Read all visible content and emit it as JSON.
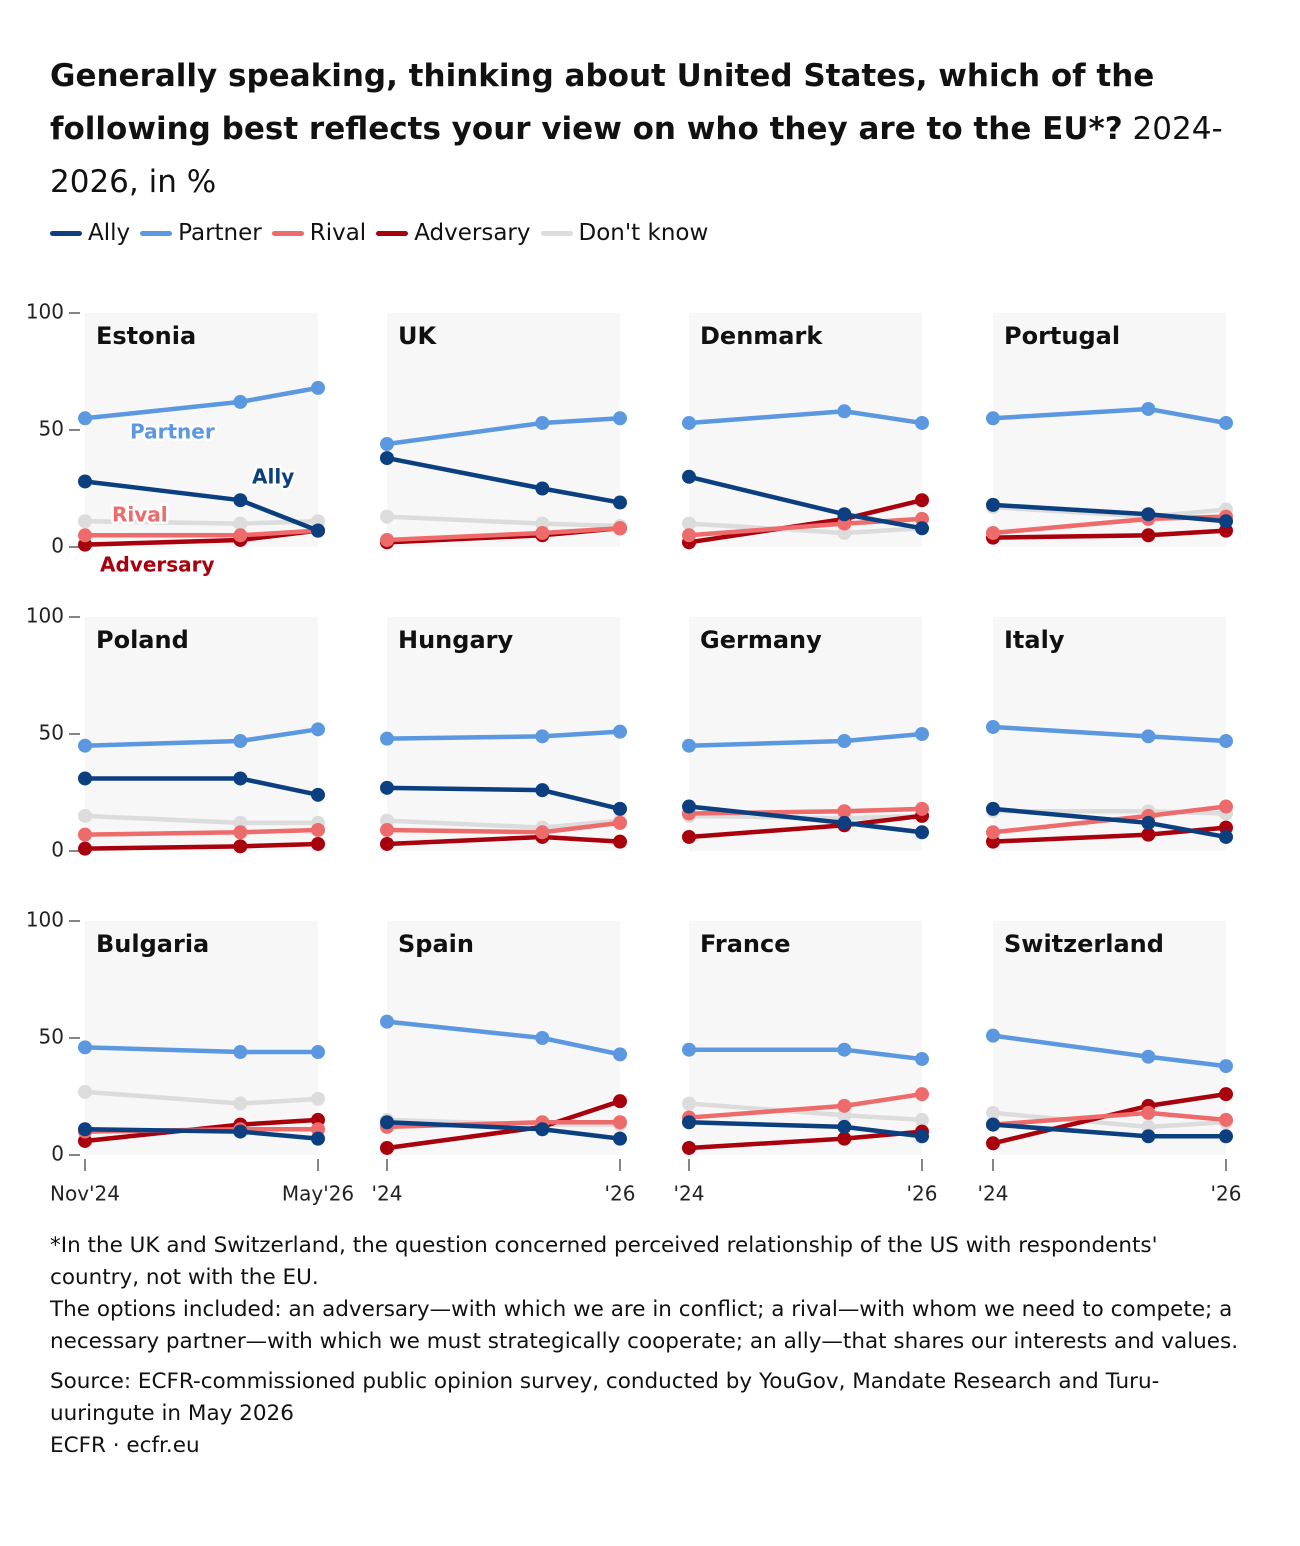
{
  "title": "Generally speaking, thinking about United States, which of the following best reflects your view on who they are to the EU*?",
  "subtitle": "2024-2026, in %",
  "notes": [
    "*In the UK and Switzerland, the question concerned perceived relationship of the US with respondents' country, not with the EU.",
    "The options included: an adversary—with which we are in conflict; a rival—with whom we need to compete; a necessary partner—with which we must strategically cooperate; an ally—that shares our interests and values."
  ],
  "source": "Source: ECFR-commissioned public opinion survey, conducted by YouGov, Mandate Research and Turu-uuringute in May 2026",
  "credit": "ECFR · ecfr.eu",
  "chart_data": [
    {
      "type": "line",
      "title": "Estonia",
      "x": [
        2024.875,
        2025.875,
        2026.375
      ],
      "xlim": [
        2024.875,
        2026.375
      ],
      "ylim": [
        0,
        100
      ],
      "yticks": [
        0,
        50,
        100
      ],
      "annotations": [
        "Partner",
        "Ally",
        "Rival",
        "Adversary"
      ],
      "series": [
        {
          "name": "Ally",
          "color": "#0b3f80",
          "values": [
            28,
            20,
            7
          ]
        },
        {
          "name": "Partner",
          "color": "#5b98e0",
          "values": [
            55,
            62,
            68
          ]
        },
        {
          "name": "Rival",
          "color": "#ee6b6b",
          "values": [
            5,
            5,
            7
          ]
        },
        {
          "name": "Adversary",
          "color": "#a8000c",
          "values": [
            1,
            3,
            7
          ]
        },
        {
          "name": "Don't know",
          "color": "#dcdcdc",
          "values": [
            11,
            10,
            11
          ]
        }
      ]
    },
    {
      "type": "line",
      "title": "UK",
      "x": [
        2024.875,
        2025.875,
        2026.375
      ],
      "xlim": [
        2024.875,
        2026.375
      ],
      "ylim": [
        0,
        100
      ],
      "series": [
        {
          "name": "Ally",
          "color": "#0b3f80",
          "values": [
            38,
            25,
            19
          ]
        },
        {
          "name": "Partner",
          "color": "#5b98e0",
          "values": [
            44,
            53,
            55
          ]
        },
        {
          "name": "Rival",
          "color": "#ee6b6b",
          "values": [
            3,
            6,
            8
          ]
        },
        {
          "name": "Adversary",
          "color": "#a8000c",
          "values": [
            2,
            5,
            8
          ]
        },
        {
          "name": "Don't know",
          "color": "#dcdcdc",
          "values": [
            13,
            10,
            9
          ]
        }
      ]
    },
    {
      "type": "line",
      "title": "Denmark",
      "x": [
        2024.875,
        2025.875,
        2026.375
      ],
      "xlim": [
        2024.875,
        2026.375
      ],
      "ylim": [
        0,
        100
      ],
      "series": [
        {
          "name": "Ally",
          "color": "#0b3f80",
          "values": [
            30,
            14,
            8
          ]
        },
        {
          "name": "Partner",
          "color": "#5b98e0",
          "values": [
            53,
            58,
            53
          ]
        },
        {
          "name": "Rival",
          "color": "#ee6b6b",
          "values": [
            5,
            10,
            12
          ]
        },
        {
          "name": "Adversary",
          "color": "#a8000c",
          "values": [
            2,
            12,
            20
          ]
        },
        {
          "name": "Don't know",
          "color": "#dcdcdc",
          "values": [
            10,
            6,
            8
          ]
        }
      ]
    },
    {
      "type": "line",
      "title": "Portugal",
      "x": [
        2024.875,
        2025.875,
        2026.375
      ],
      "xlim": [
        2024.875,
        2026.375
      ],
      "ylim": [
        0,
        100
      ],
      "series": [
        {
          "name": "Ally",
          "color": "#0b3f80",
          "values": [
            18,
            14,
            11
          ]
        },
        {
          "name": "Partner",
          "color": "#5b98e0",
          "values": [
            55,
            59,
            53
          ]
        },
        {
          "name": "Rival",
          "color": "#ee6b6b",
          "values": [
            6,
            12,
            13
          ]
        },
        {
          "name": "Adversary",
          "color": "#a8000c",
          "values": [
            4,
            5,
            7
          ]
        },
        {
          "name": "Don't know",
          "color": "#dcdcdc",
          "values": [
            17,
            13,
            16
          ]
        }
      ]
    },
    {
      "type": "line",
      "title": "Poland",
      "x": [
        2024.875,
        2025.875,
        2026.375
      ],
      "xlim": [
        2024.875,
        2026.375
      ],
      "ylim": [
        0,
        100
      ],
      "yticks": [
        0,
        50,
        100
      ],
      "series": [
        {
          "name": "Ally",
          "color": "#0b3f80",
          "values": [
            31,
            31,
            24
          ]
        },
        {
          "name": "Partner",
          "color": "#5b98e0",
          "values": [
            45,
            47,
            52
          ]
        },
        {
          "name": "Rival",
          "color": "#ee6b6b",
          "values": [
            7,
            8,
            9
          ]
        },
        {
          "name": "Adversary",
          "color": "#a8000c",
          "values": [
            1,
            2,
            3
          ]
        },
        {
          "name": "Don't know",
          "color": "#dcdcdc",
          "values": [
            15,
            12,
            12
          ]
        }
      ]
    },
    {
      "type": "line",
      "title": "Hungary",
      "x": [
        2024.875,
        2025.875,
        2026.375
      ],
      "xlim": [
        2024.875,
        2026.375
      ],
      "ylim": [
        0,
        100
      ],
      "series": [
        {
          "name": "Ally",
          "color": "#0b3f80",
          "values": [
            27,
            26,
            18
          ]
        },
        {
          "name": "Partner",
          "color": "#5b98e0",
          "values": [
            48,
            49,
            51
          ]
        },
        {
          "name": "Rival",
          "color": "#ee6b6b",
          "values": [
            9,
            8,
            12
          ]
        },
        {
          "name": "Adversary",
          "color": "#a8000c",
          "values": [
            3,
            6,
            4
          ]
        },
        {
          "name": "Don't know",
          "color": "#dcdcdc",
          "values": [
            13,
            10,
            13
          ]
        }
      ]
    },
    {
      "type": "line",
      "title": "Germany",
      "x": [
        2024.875,
        2025.875,
        2026.375
      ],
      "xlim": [
        2024.875,
        2026.375
      ],
      "ylim": [
        0,
        100
      ],
      "series": [
        {
          "name": "Ally",
          "color": "#0b3f80",
          "values": [
            19,
            12,
            8
          ]
        },
        {
          "name": "Partner",
          "color": "#5b98e0",
          "values": [
            45,
            47,
            50
          ]
        },
        {
          "name": "Rival",
          "color": "#ee6b6b",
          "values": [
            16,
            17,
            18
          ]
        },
        {
          "name": "Adversary",
          "color": "#a8000c",
          "values": [
            6,
            11,
            15
          ]
        },
        {
          "name": "Don't know",
          "color": "#dcdcdc",
          "values": [
            15,
            14,
            15
          ]
        }
      ]
    },
    {
      "type": "line",
      "title": "Italy",
      "x": [
        2024.875,
        2025.875,
        2026.375
      ],
      "xlim": [
        2024.875,
        2026.375
      ],
      "ylim": [
        0,
        100
      ],
      "series": [
        {
          "name": "Ally",
          "color": "#0b3f80",
          "values": [
            18,
            12,
            6
          ]
        },
        {
          "name": "Partner",
          "color": "#5b98e0",
          "values": [
            53,
            49,
            47
          ]
        },
        {
          "name": "Rival",
          "color": "#ee6b6b",
          "values": [
            8,
            15,
            19
          ]
        },
        {
          "name": "Adversary",
          "color": "#a8000c",
          "values": [
            4,
            7,
            10
          ]
        },
        {
          "name": "Don't know",
          "color": "#dcdcdc",
          "values": [
            17,
            17,
            16
          ]
        }
      ]
    },
    {
      "type": "line",
      "title": "Bulgaria",
      "x": [
        2024.875,
        2025.875,
        2026.375
      ],
      "xlim": [
        2024.875,
        2026.375
      ],
      "ylim": [
        0,
        100
      ],
      "yticks": [
        0,
        50,
        100
      ],
      "xticks": [
        {
          "value": 2024.875,
          "label": "Nov'24"
        },
        {
          "value": 2026.375,
          "label": "May'26"
        }
      ],
      "series": [
        {
          "name": "Ally",
          "color": "#0b3f80",
          "values": [
            11,
            10,
            7
          ]
        },
        {
          "name": "Partner",
          "color": "#5b98e0",
          "values": [
            46,
            44,
            44
          ]
        },
        {
          "name": "Rival",
          "color": "#ee6b6b",
          "values": [
            10,
            11,
            11
          ]
        },
        {
          "name": "Adversary",
          "color": "#a8000c",
          "values": [
            6,
            13,
            15
          ]
        },
        {
          "name": "Don't know",
          "color": "#dcdcdc",
          "values": [
            27,
            22,
            24
          ]
        }
      ]
    },
    {
      "type": "line",
      "title": "Spain",
      "x": [
        2024.875,
        2025.875,
        2026.375
      ],
      "xlim": [
        2024.875,
        2026.375
      ],
      "ylim": [
        0,
        100
      ],
      "xticks": [
        {
          "value": 2024.875,
          "label": "'24"
        },
        {
          "value": 2026.375,
          "label": "'26"
        }
      ],
      "series": [
        {
          "name": "Ally",
          "color": "#0b3f80",
          "values": [
            14,
            11,
            7
          ]
        },
        {
          "name": "Partner",
          "color": "#5b98e0",
          "values": [
            57,
            50,
            43
          ]
        },
        {
          "name": "Rival",
          "color": "#ee6b6b",
          "values": [
            12,
            14,
            14
          ]
        },
        {
          "name": "Adversary",
          "color": "#a8000c",
          "values": [
            3,
            12,
            23
          ]
        },
        {
          "name": "Don't know",
          "color": "#dcdcdc",
          "values": [
            15,
            13,
            13
          ]
        }
      ]
    },
    {
      "type": "line",
      "title": "France",
      "x": [
        2024.875,
        2025.875,
        2026.375
      ],
      "xlim": [
        2024.875,
        2026.375
      ],
      "ylim": [
        0,
        100
      ],
      "xticks": [
        {
          "value": 2024.875,
          "label": "'24"
        },
        {
          "value": 2026.375,
          "label": "'26"
        }
      ],
      "series": [
        {
          "name": "Ally",
          "color": "#0b3f80",
          "values": [
            14,
            12,
            8
          ]
        },
        {
          "name": "Partner",
          "color": "#5b98e0",
          "values": [
            45,
            45,
            41
          ]
        },
        {
          "name": "Rival",
          "color": "#ee6b6b",
          "values": [
            16,
            21,
            26
          ]
        },
        {
          "name": "Adversary",
          "color": "#a8000c",
          "values": [
            3,
            7,
            10
          ]
        },
        {
          "name": "Don't know",
          "color": "#dcdcdc",
          "values": [
            22,
            17,
            15
          ]
        }
      ]
    },
    {
      "type": "line",
      "title": "Switzerland",
      "x": [
        2024.875,
        2025.875,
        2026.375
      ],
      "xlim": [
        2024.875,
        2026.375
      ],
      "ylim": [
        0,
        100
      ],
      "xticks": [
        {
          "value": 2024.875,
          "label": "'24"
        },
        {
          "value": 2026.375,
          "label": "'26"
        }
      ],
      "series": [
        {
          "name": "Ally",
          "color": "#0b3f80",
          "values": [
            13,
            8,
            8
          ]
        },
        {
          "name": "Partner",
          "color": "#5b98e0",
          "values": [
            51,
            42,
            38
          ]
        },
        {
          "name": "Rival",
          "color": "#ee6b6b",
          "values": [
            13,
            18,
            15
          ]
        },
        {
          "name": "Adversary",
          "color": "#a8000c",
          "values": [
            5,
            21,
            26
          ]
        },
        {
          "name": "Don't know",
          "color": "#dcdcdc",
          "values": [
            18,
            12,
            14
          ]
        }
      ]
    }
  ]
}
